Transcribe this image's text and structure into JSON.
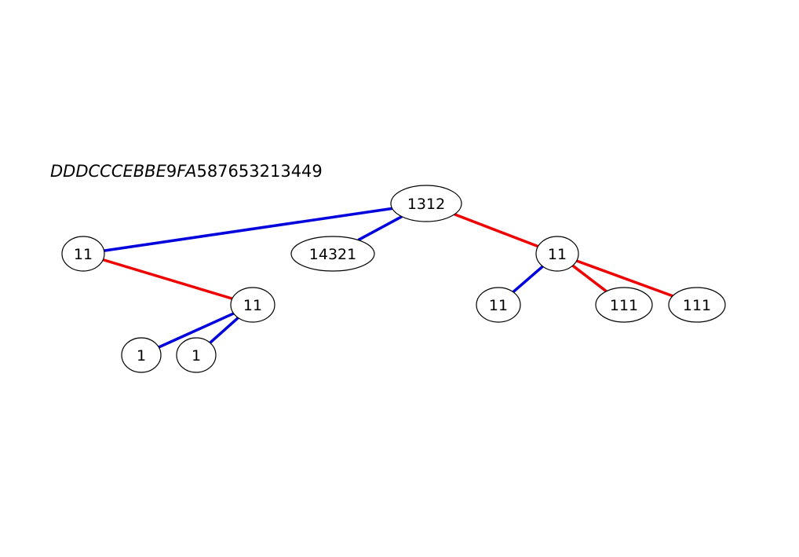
{
  "title": {
    "italic_part": "DDDCCCEBBE",
    "mid_part": "9",
    "italic_part2": "FA",
    "tail_part": "587653213449"
  },
  "colors": {
    "blue_edge": "#0000dd",
    "red_edge": "#ee0000"
  },
  "nodes": [
    {
      "id": "root",
      "label": "1312"
    },
    {
      "id": "l",
      "label": "11"
    },
    {
      "id": "m",
      "label": "14321"
    },
    {
      "id": "r",
      "label": "11"
    },
    {
      "id": "lr",
      "label": "11"
    },
    {
      "id": "lrl",
      "label": "1"
    },
    {
      "id": "lrr",
      "label": "1"
    },
    {
      "id": "rl",
      "label": "11"
    },
    {
      "id": "rm",
      "label": "111"
    },
    {
      "id": "rr",
      "label": "111"
    }
  ],
  "edges": [
    {
      "from": "root",
      "to": "l",
      "color": "blue"
    },
    {
      "from": "root",
      "to": "m",
      "color": "blue"
    },
    {
      "from": "root",
      "to": "r",
      "color": "red"
    },
    {
      "from": "l",
      "to": "lr",
      "color": "red"
    },
    {
      "from": "lr",
      "to": "lrl",
      "color": "blue"
    },
    {
      "from": "lr",
      "to": "lrr",
      "color": "blue"
    },
    {
      "from": "r",
      "to": "rl",
      "color": "blue"
    },
    {
      "from": "r",
      "to": "rm",
      "color": "red"
    },
    {
      "from": "r",
      "to": "rr",
      "color": "red"
    }
  ]
}
